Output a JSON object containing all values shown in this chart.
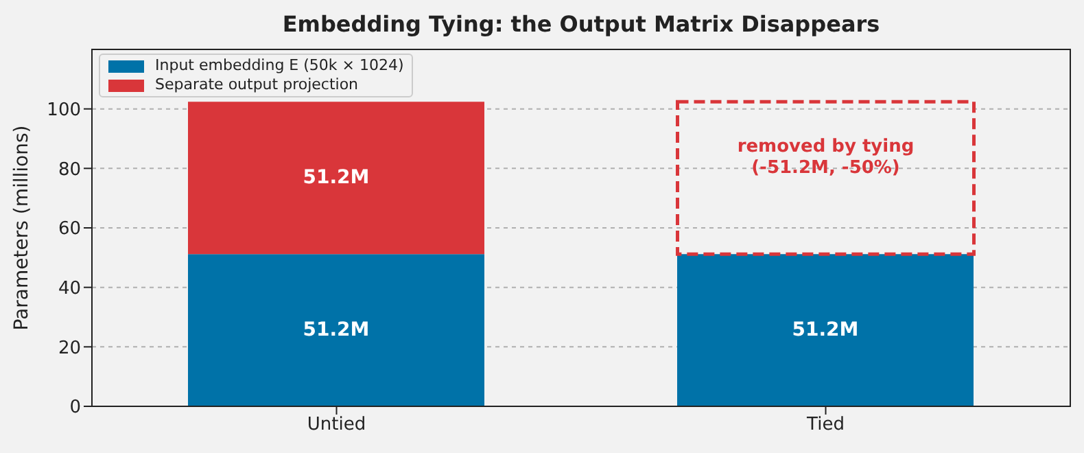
{
  "chart_data": {
    "type": "bar",
    "title": "Embedding Tying: the Output Matrix Disappears",
    "ylabel": "Parameters (millions)",
    "categories": [
      "Untied",
      "Tied"
    ],
    "stacked": true,
    "series": [
      {
        "name": "Input embedding E (50k × 1024)",
        "color": "#0072a8",
        "values": [
          51.2,
          51.2
        ],
        "value_labels": [
          "51.2M",
          "51.2M"
        ]
      },
      {
        "name": "Separate output projection",
        "color": "#d9363a",
        "values": [
          51.2,
          null
        ],
        "value_labels": [
          "51.2M",
          null
        ]
      }
    ],
    "ylim": [
      0,
      120
    ],
    "yticks": [
      0,
      20,
      40,
      60,
      80,
      100
    ],
    "grid": "y",
    "legend": "top left",
    "annotations": [
      "removed by tying\n(-51.2M, -50%)"
    ]
  }
}
